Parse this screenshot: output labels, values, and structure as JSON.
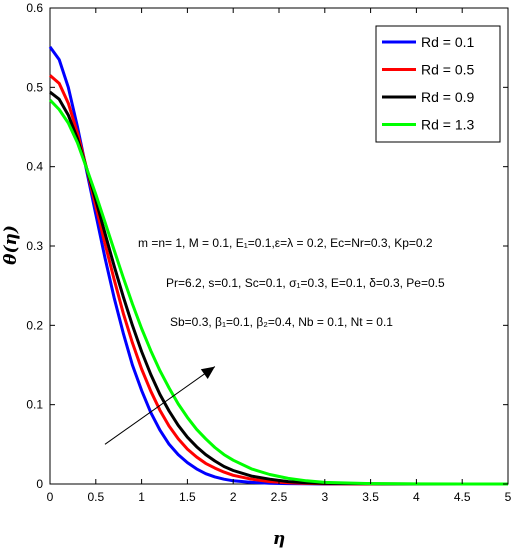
{
  "chart_data": {
    "type": "line",
    "xlabel": "η",
    "ylabel": "θ(η)",
    "xlim": [
      0,
      5
    ],
    "ylim": [
      0,
      0.6
    ],
    "xticks": [
      0,
      0.5,
      1,
      1.5,
      2,
      2.5,
      3,
      3.5,
      4,
      4.5,
      5
    ],
    "yticks": [
      0,
      0.1,
      0.2,
      0.3,
      0.4,
      0.5,
      0.6
    ],
    "xtick_labels": [
      "0",
      "0.5",
      "1",
      "1.5",
      "2",
      "2.5",
      "3",
      "3.5",
      "4",
      "4.5",
      "5"
    ],
    "ytick_labels": [
      "0",
      "0.1",
      "0.2",
      "0.3",
      "0.4",
      "0.5",
      "0.6"
    ],
    "grid": false,
    "legend_position": "top-right",
    "series": [
      {
        "name": "Rd = 0.1",
        "color": "#0000ff",
        "x": [
          0,
          0.1,
          0.2,
          0.3,
          0.4,
          0.5,
          0.6,
          0.7,
          0.8,
          0.9,
          1.0,
          1.1,
          1.2,
          1.3,
          1.4,
          1.5,
          1.6,
          1.7,
          1.8,
          1.9,
          2.0,
          2.2,
          2.4,
          2.6,
          2.8,
          3.0,
          3.5,
          4.0,
          4.5,
          5.0
        ],
        "y": [
          0.551,
          0.535,
          0.5,
          0.45,
          0.395,
          0.34,
          0.285,
          0.235,
          0.19,
          0.15,
          0.118,
          0.09,
          0.068,
          0.05,
          0.037,
          0.027,
          0.019,
          0.013,
          0.009,
          0.006,
          0.004,
          0.002,
          0.001,
          0.0005,
          0.0002,
          0,
          0,
          0,
          0,
          0
        ]
      },
      {
        "name": "Rd = 0.5",
        "color": "#ff0000",
        "x": [
          0,
          0.1,
          0.2,
          0.3,
          0.4,
          0.5,
          0.6,
          0.7,
          0.8,
          0.9,
          1.0,
          1.1,
          1.2,
          1.3,
          1.4,
          1.5,
          1.6,
          1.7,
          1.8,
          1.9,
          2.0,
          2.2,
          2.4,
          2.6,
          2.8,
          3.0,
          3.5,
          4.0,
          4.5,
          5.0
        ],
        "y": [
          0.515,
          0.505,
          0.48,
          0.442,
          0.398,
          0.35,
          0.303,
          0.258,
          0.215,
          0.178,
          0.145,
          0.117,
          0.093,
          0.073,
          0.057,
          0.044,
          0.034,
          0.026,
          0.02,
          0.015,
          0.011,
          0.006,
          0.003,
          0.0015,
          0.0008,
          0.0004,
          0,
          0,
          0,
          0
        ]
      },
      {
        "name": "Rd = 0.9",
        "color": "#000000",
        "x": [
          0,
          0.1,
          0.2,
          0.3,
          0.4,
          0.5,
          0.6,
          0.7,
          0.8,
          0.9,
          1.0,
          1.1,
          1.2,
          1.3,
          1.4,
          1.5,
          1.6,
          1.7,
          1.8,
          1.9,
          2.0,
          2.2,
          2.4,
          2.6,
          2.8,
          3.0,
          3.5,
          4.0,
          4.5,
          5.0
        ],
        "y": [
          0.494,
          0.485,
          0.465,
          0.435,
          0.398,
          0.358,
          0.316,
          0.275,
          0.236,
          0.2,
          0.167,
          0.138,
          0.113,
          0.092,
          0.074,
          0.059,
          0.047,
          0.037,
          0.029,
          0.022,
          0.017,
          0.01,
          0.006,
          0.003,
          0.0015,
          0.0008,
          0.0002,
          0,
          0,
          0
        ]
      },
      {
        "name": "Rd = 1.3",
        "color": "#00ff00",
        "x": [
          0,
          0.1,
          0.2,
          0.3,
          0.4,
          0.5,
          0.6,
          0.7,
          0.8,
          0.9,
          1.0,
          1.1,
          1.2,
          1.3,
          1.4,
          1.5,
          1.6,
          1.7,
          1.8,
          1.9,
          2.0,
          2.2,
          2.4,
          2.6,
          2.8,
          3.0,
          3.5,
          4.0,
          4.5,
          5.0
        ],
        "y": [
          0.484,
          0.472,
          0.455,
          0.43,
          0.398,
          0.365,
          0.33,
          0.295,
          0.26,
          0.227,
          0.196,
          0.168,
          0.143,
          0.121,
          0.101,
          0.084,
          0.069,
          0.057,
          0.046,
          0.037,
          0.03,
          0.019,
          0.012,
          0.007,
          0.004,
          0.002,
          0.0005,
          0.0001,
          0,
          0
        ]
      }
    ],
    "annotations": [
      "m =n= 1, M = 0.1, E₁=0.1,ε=λ = 0.2, Ec=Nr=0.3, Kp=0.2",
      "Pr=6.2, s=0.1, Sc=0.1, σ₁=0.3, E=0.1, δ=0.3, Pe=0.5",
      "Sb=0.3, β₁=0.1, β₂=0.4, Nb = 0.1, Nt = 0.1"
    ],
    "arrow": {
      "from": [
        0.6,
        0.05
      ],
      "to": [
        1.8,
        0.148
      ],
      "meaning": "increasing Rd"
    }
  }
}
